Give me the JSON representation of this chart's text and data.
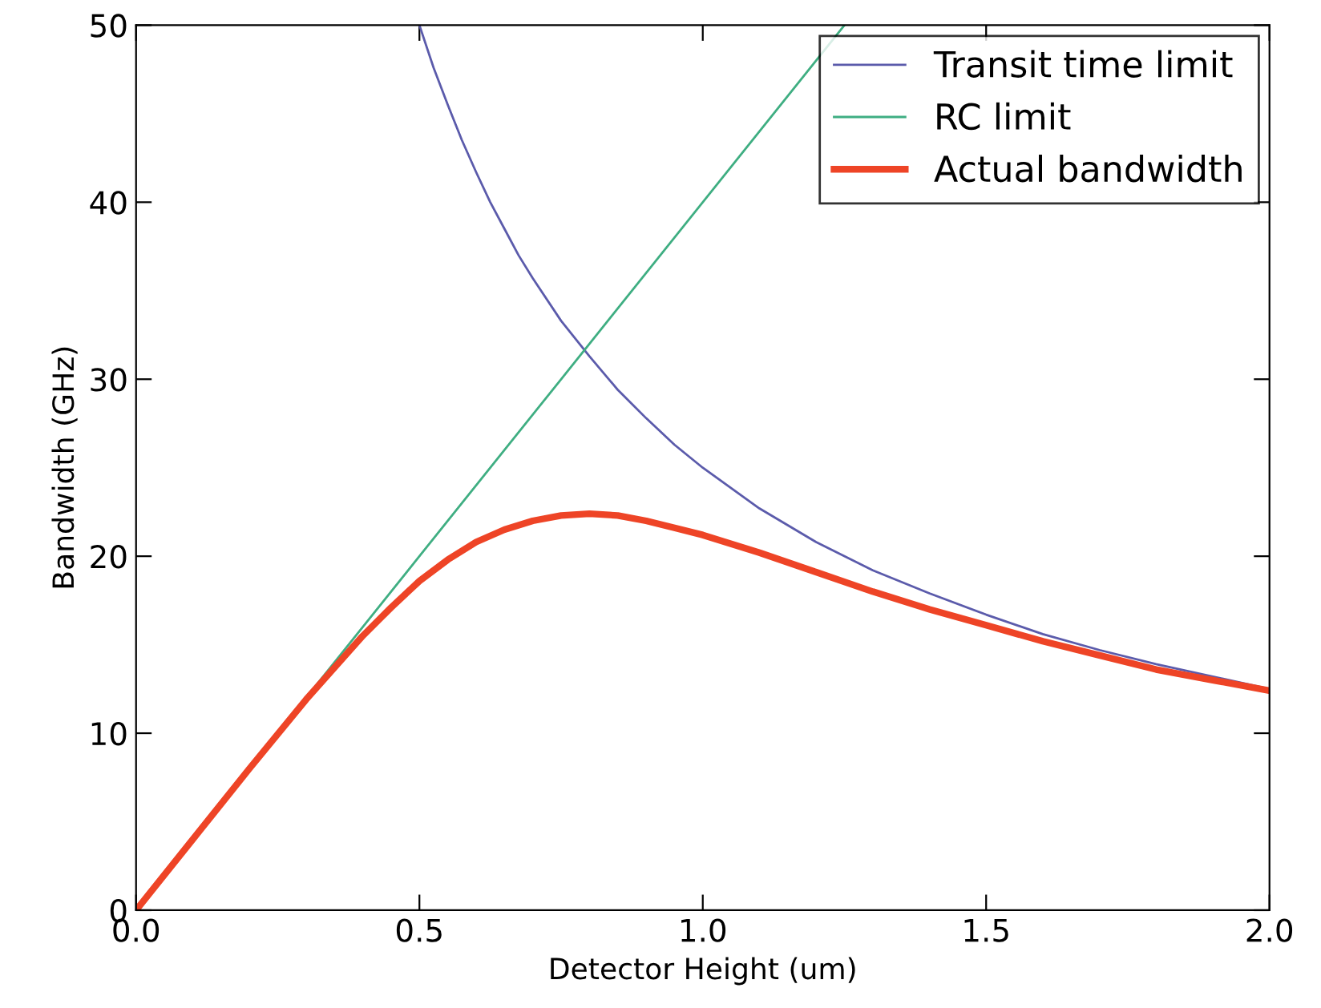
{
  "chart_data": {
    "type": "line",
    "xlabel": "Detector Height (um)",
    "ylabel": "Bandwidth (GHz)",
    "xlim": [
      0,
      2
    ],
    "ylim": [
      0,
      50
    ],
    "xticks": [
      {
        "value": 0,
        "label": "0.0"
      },
      {
        "value": 0.5,
        "label": "0.5"
      },
      {
        "value": 1,
        "label": "1.0"
      },
      {
        "value": 1.5,
        "label": "1.5"
      },
      {
        "value": 2,
        "label": "2.0"
      }
    ],
    "yticks": [
      0,
      10,
      20,
      30,
      40,
      50
    ],
    "grid": false,
    "legend": "top right",
    "marker": "none",
    "line_style": "solid",
    "series": [
      {
        "name": "Transit time limit",
        "color": "#5b5bab",
        "x": [
          0.5,
          0.525,
          0.55,
          0.575,
          0.6,
          0.625,
          0.65,
          0.675,
          0.7,
          0.75,
          0.8,
          0.85,
          0.9,
          0.95,
          1.0,
          1.1,
          1.2,
          1.3,
          1.4,
          1.5,
          1.6,
          1.7,
          1.8,
          1.9,
          2.0
        ],
        "values": [
          50,
          47.6,
          45.5,
          43.5,
          41.7,
          40,
          38.5,
          37,
          35.7,
          33.3,
          31.3,
          29.4,
          27.8,
          26.3,
          25,
          22.7,
          20.8,
          19.2,
          17.9,
          16.7,
          15.6,
          14.7,
          13.9,
          13.2,
          12.5
        ]
      },
      {
        "name": "RC limit",
        "color": "#3fae82",
        "x": [
          0,
          0.5,
          0.75,
          1.0,
          1.25
        ],
        "values": [
          0,
          20,
          30,
          40,
          50
        ]
      },
      {
        "name": "Actual bandwidth",
        "color": "#ee4426",
        "x": [
          0,
          0.1,
          0.2,
          0.3,
          0.35,
          0.4,
          0.45,
          0.5,
          0.55,
          0.6,
          0.65,
          0.7,
          0.75,
          0.8,
          0.85,
          0.9,
          0.95,
          1.0,
          1.1,
          1.2,
          1.3,
          1.4,
          1.5,
          1.6,
          1.7,
          1.8,
          1.9,
          2.0
        ],
        "values": [
          0,
          4,
          8,
          11.9,
          13.7,
          15.5,
          17.1,
          18.6,
          19.8,
          20.8,
          21.5,
          22,
          22.3,
          22.4,
          22.3,
          22,
          21.6,
          21.2,
          20.2,
          19.1,
          18,
          17,
          16.1,
          15.2,
          14.4,
          13.6,
          13,
          12.4
        ]
      }
    ]
  }
}
